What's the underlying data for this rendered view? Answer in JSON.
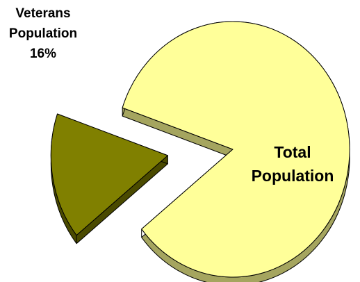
{
  "chart_data": {
    "type": "pie",
    "style": "3d-exploded",
    "title": "",
    "legend": "none",
    "slices": [
      {
        "name": "Total Population",
        "label_lines": [
          "Total",
          "Population"
        ],
        "value": 84,
        "color": "#FFFF99",
        "side_color": "#A5A55F",
        "exploded": false
      },
      {
        "name": "Veterans Population",
        "label_lines": [
          "Veterans",
          "Population",
          "16%"
        ],
        "value": 16,
        "color": "#808000",
        "side_color": "#4A4A00",
        "exploded": true
      }
    ]
  }
}
